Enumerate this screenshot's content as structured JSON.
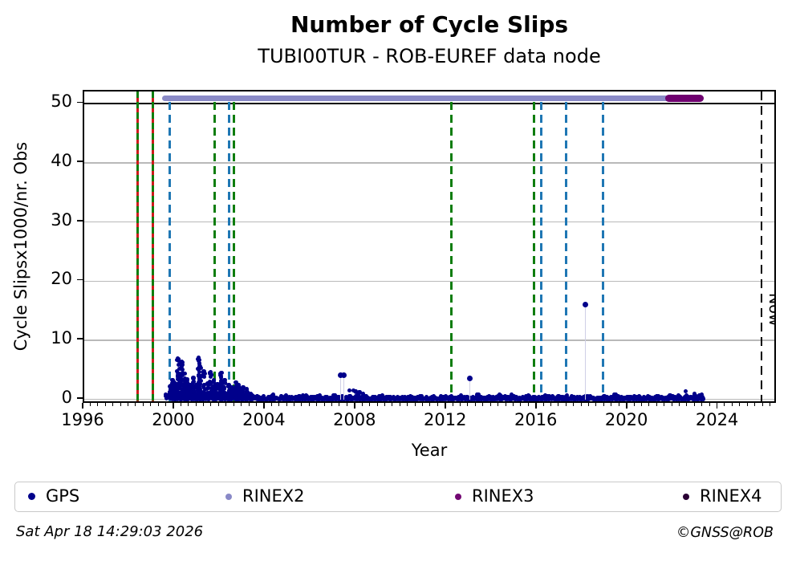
{
  "page": {
    "footer_left": "Sat Apr 18 14:29:03 2026",
    "footer_right": "©GNSS@ROB"
  },
  "chart_data": {
    "type": "scatter",
    "title": "Number of Cycle Slips",
    "subtitle": "TUBI00TUR - ROB-EUREF data node",
    "xlabel": "Year",
    "ylabel": "Cycle Slipsx1000/nr. Obs",
    "xlim": [
      1996,
      2026.6
    ],
    "ylim": [
      -0.85,
      52.1
    ],
    "xticks": [
      1996,
      2000,
      2004,
      2008,
      2012,
      2016,
      2020,
      2024
    ],
    "x_minor_step_years": 0.33333,
    "yticks": [
      0,
      10,
      20,
      30,
      40,
      50
    ],
    "grid_y_values": [
      0,
      10,
      20,
      30,
      40
    ],
    "grid_color": "#b9b9b9",
    "cap_line_y": 50,
    "legend_position": "bottom",
    "legend": [
      {
        "label": "GPS",
        "color": "#00008b"
      },
      {
        "label": "RINEX2",
        "color": "#8989c7"
      },
      {
        "label": "RINEX3",
        "color": "#730873"
      },
      {
        "label": "RINEX4",
        "color": "#2a0134"
      }
    ],
    "colors": {
      "gps": "#00008b",
      "rinex2_bar": "#8a8ac6",
      "rinex3_bar": "#6f006f",
      "event_blue": "#1f77b4",
      "event_green": "#0e7d0e",
      "event_red": "#cc1a1a",
      "now_line": "#000000",
      "stem": "#cfcfe6"
    },
    "gps_series": {
      "name": "GPS",
      "band": {
        "start": 1999.58,
        "end": 2023.33,
        "typical_value": 0.3
      },
      "cluster_columns": [
        [
          1999.82,
          2.3
        ],
        [
          1999.9,
          3.3
        ],
        [
          2000.0,
          2.7
        ],
        [
          2000.12,
          6.9
        ],
        [
          2000.2,
          5.2
        ],
        [
          2000.3,
          6.4
        ],
        [
          2000.42,
          4.4
        ],
        [
          2000.55,
          3.4
        ],
        [
          2000.7,
          2.4
        ],
        [
          2000.82,
          3.6
        ],
        [
          2000.95,
          2.5
        ],
        [
          2001.05,
          7.0
        ],
        [
          2001.12,
          5.6
        ],
        [
          2001.28,
          4.7
        ],
        [
          2001.45,
          2.7
        ],
        [
          2001.58,
          4.6
        ],
        [
          2001.72,
          3.2
        ],
        [
          2001.88,
          2.6
        ],
        [
          2002.05,
          4.5
        ],
        [
          2002.2,
          3.3
        ],
        [
          2002.38,
          2.5
        ],
        [
          2002.52,
          2.1
        ],
        [
          2002.68,
          2.9
        ],
        [
          2002.82,
          2.4
        ],
        [
          2003.0,
          2.1
        ],
        [
          2003.18,
          1.7
        ]
      ],
      "bumps": [
        [
          2003.35,
          1.0
        ],
        [
          2003.6,
          0.8
        ],
        [
          2004.3,
          0.9
        ],
        [
          2004.9,
          0.8
        ],
        [
          2005.5,
          0.7
        ],
        [
          2006.3,
          0.6
        ],
        [
          2007.05,
          0.8
        ],
        [
          2007.75,
          1.7
        ],
        [
          2007.95,
          1.6
        ],
        [
          2008.15,
          1.9
        ],
        [
          2008.35,
          1.2
        ],
        [
          2009.1,
          0.7
        ],
        [
          2010.3,
          0.6
        ],
        [
          2011.4,
          0.6
        ],
        [
          2012.6,
          0.7
        ],
        [
          2013.35,
          0.9
        ],
        [
          2013.9,
          0.8
        ],
        [
          2014.35,
          1.1
        ],
        [
          2014.9,
          0.9
        ],
        [
          2015.6,
          0.8
        ],
        [
          2016.35,
          1.0
        ],
        [
          2017.3,
          0.7
        ],
        [
          2018.3,
          0.6
        ],
        [
          2019.4,
          0.9
        ],
        [
          2020.3,
          0.6
        ],
        [
          2021.3,
          0.7
        ],
        [
          2021.9,
          0.9
        ],
        [
          2022.25,
          0.8
        ],
        [
          2022.6,
          1.4
        ],
        [
          2022.95,
          1.1
        ],
        [
          2023.2,
          0.9
        ]
      ],
      "outliers": [
        [
          2007.33,
          4.1
        ],
        [
          2007.47,
          4.1
        ],
        [
          2013.0,
          3.6
        ],
        [
          2018.1,
          16.0
        ]
      ]
    },
    "format_bars": [
      {
        "name": "RINEX2",
        "start": 1999.45,
        "end": 2023.35,
        "y": 51
      },
      {
        "name": "RINEX3",
        "start": 2021.65,
        "end": 2023.35,
        "y": 51
      }
    ],
    "event_lines": [
      {
        "year": 1998.35,
        "type": "red-green"
      },
      {
        "year": 1999.02,
        "type": "red-green"
      },
      {
        "year": 1999.78,
        "type": "blue"
      },
      {
        "year": 2001.75,
        "type": "green"
      },
      {
        "year": 2002.4,
        "type": "blue"
      },
      {
        "year": 2002.6,
        "type": "green"
      },
      {
        "year": 2012.2,
        "type": "green"
      },
      {
        "year": 2015.85,
        "type": "green"
      },
      {
        "year": 2016.17,
        "type": "blue"
      },
      {
        "year": 2017.27,
        "type": "blue"
      },
      {
        "year": 2018.9,
        "type": "blue"
      }
    ],
    "now_line": {
      "year": 2025.9,
      "label": "Now"
    }
  }
}
